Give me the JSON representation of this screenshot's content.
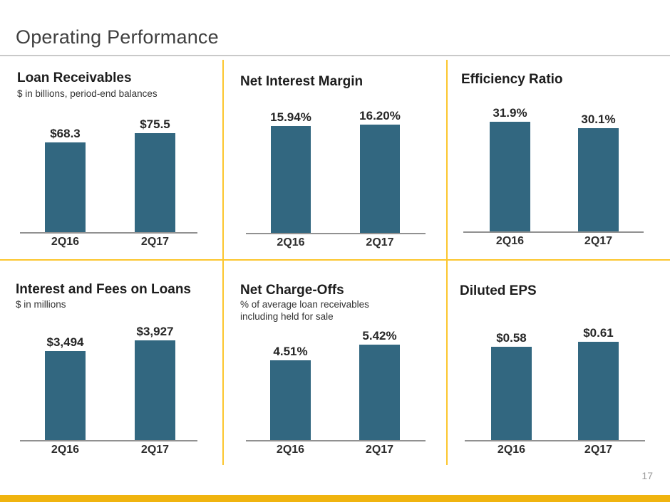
{
  "page": {
    "title": "Operating Performance",
    "page_number": "17"
  },
  "colors": {
    "bar": "#326780",
    "divider": "#fcc62e",
    "footer_bar": "#f0b40f",
    "title_text": "#3f3f3f",
    "axis": "#919191"
  },
  "chart_data": [
    {
      "type": "bar",
      "title": "Loan Receivables",
      "subtitle": "$ in billions, period-end balances",
      "categories": [
        "2Q16",
        "2Q17"
      ],
      "values": [
        68.3,
        75.5
      ],
      "value_labels": [
        "$68.3",
        "$75.5"
      ],
      "baseline": 0
    },
    {
      "type": "bar",
      "title": "Net Interest Margin",
      "subtitle": "",
      "categories": [
        "2Q16",
        "2Q17"
      ],
      "values": [
        15.94,
        16.2
      ],
      "value_labels": [
        "15.94%",
        "16.20%"
      ],
      "baseline": 0
    },
    {
      "type": "bar",
      "title": "Efficiency Ratio",
      "subtitle": "",
      "categories": [
        "2Q16",
        "2Q17"
      ],
      "values": [
        31.9,
        30.1
      ],
      "value_labels": [
        "31.9%",
        "30.1%"
      ],
      "baseline": 0
    },
    {
      "type": "bar",
      "title": "Interest and Fees on Loans",
      "subtitle": "$ in millions",
      "categories": [
        "2Q16",
        "2Q17"
      ],
      "values": [
        3494,
        3927
      ],
      "value_labels": [
        "$3,494",
        "$3,927"
      ],
      "baseline": 0
    },
    {
      "type": "bar",
      "title": "Net Charge-Offs",
      "subtitle": "% of average loan receivables\nincluding held for sale",
      "categories": [
        "2Q16",
        "2Q17"
      ],
      "values": [
        4.51,
        5.42
      ],
      "value_labels": [
        "4.51%",
        "5.42%"
      ],
      "baseline": 0
    },
    {
      "type": "bar",
      "title": "Diluted EPS",
      "subtitle": "",
      "categories": [
        "2Q16",
        "2Q17"
      ],
      "values": [
        0.58,
        0.61
      ],
      "value_labels": [
        "$0.58",
        "$0.61"
      ],
      "baseline": 0
    }
  ]
}
